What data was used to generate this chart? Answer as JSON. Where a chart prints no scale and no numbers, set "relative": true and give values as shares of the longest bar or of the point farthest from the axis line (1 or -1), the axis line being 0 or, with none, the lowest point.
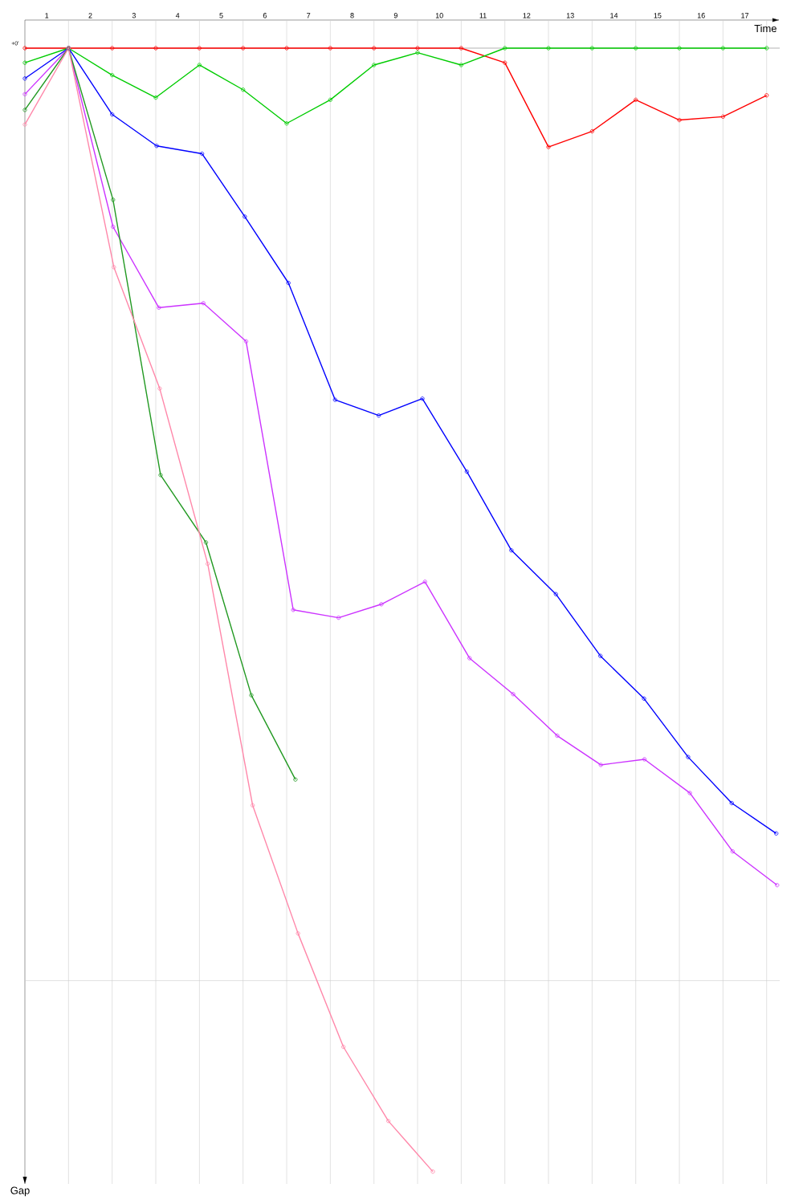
{
  "chart_data": {
    "type": "line",
    "relative": true,
    "xlabel": "Time",
    "ylabel": "Gap",
    "annotations": [
      "+0'"
    ],
    "xlim": [
      0,
      17.3
    ],
    "xticks": [
      {
        "value": 0.5,
        "label": "1"
      },
      {
        "value": 1.5,
        "label": "2"
      },
      {
        "value": 2.5,
        "label": "3"
      },
      {
        "value": 3.5,
        "label": "4"
      },
      {
        "value": 4.5,
        "label": "5"
      },
      {
        "value": 5.5,
        "label": "6"
      },
      {
        "value": 6.5,
        "label": "7"
      },
      {
        "value": 7.5,
        "label": "8"
      },
      {
        "value": 8.5,
        "label": "9"
      },
      {
        "value": 9.5,
        "label": "10"
      },
      {
        "value": 10.5,
        "label": "11"
      },
      {
        "value": 11.5,
        "label": "12"
      },
      {
        "value": 12.5,
        "label": "13"
      },
      {
        "value": 13.5,
        "label": "14"
      },
      {
        "value": 14.5,
        "label": "15"
      },
      {
        "value": 15.5,
        "label": "16"
      },
      {
        "value": 16.5,
        "label": "17"
      },
      {
        "value": 1,
        "label": null
      },
      {
        "value": 2,
        "label": null
      },
      {
        "value": 3,
        "label": null
      },
      {
        "value": 4,
        "label": null
      },
      {
        "value": 5,
        "label": null
      },
      {
        "value": 6,
        "label": null
      },
      {
        "value": 7,
        "label": null
      },
      {
        "value": 8,
        "label": null
      },
      {
        "value": 9,
        "label": null
      },
      {
        "value": 10,
        "label": null
      },
      {
        "value": 11,
        "label": null
      },
      {
        "value": 12,
        "label": null
      },
      {
        "value": 13,
        "label": null
      },
      {
        "value": 14,
        "label": null
      },
      {
        "value": 15,
        "label": null
      },
      {
        "value": 16,
        "label": null
      },
      {
        "value": 17,
        "label": null
      }
    ],
    "grid": "x",
    "marker": "circle",
    "line_style": "solid",
    "ref_lines": [
      {
        "axis": "y",
        "value": -0.83,
        "color": "#cccccc"
      }
    ],
    "series": [
      {
        "color": "#ff0000",
        "x": [
          0,
          1,
          2,
          3,
          4,
          5,
          6,
          7,
          8,
          9,
          10,
          11,
          12,
          13,
          14,
          15,
          16,
          17
        ],
        "values": [
          0,
          0,
          0,
          0,
          0,
          0,
          0,
          0,
          0,
          0,
          0,
          -0.013,
          -0.088,
          -0.074,
          -0.046,
          -0.064,
          -0.061,
          -0.042
        ]
      },
      {
        "color": "#00cc00",
        "x": [
          0,
          1,
          2,
          3,
          4,
          5,
          6,
          7,
          8,
          9,
          10,
          11,
          12,
          13,
          14,
          15,
          16,
          17
        ],
        "values": [
          -0.013,
          0,
          -0.024,
          -0.044,
          -0.015,
          -0.037,
          -0.067,
          -0.046,
          -0.015,
          -0.004,
          -0.015,
          0,
          0,
          0,
          0,
          0,
          0,
          0
        ]
      },
      {
        "color": "#0000ff",
        "x": [
          0,
          1,
          2,
          3.02,
          4.06,
          5.04,
          6.04,
          7.11,
          8.11,
          9.11,
          10.13,
          11.15,
          12.17,
          13.19,
          14.19,
          15.2,
          16.2,
          17.22
        ],
        "values": [
          -0.027,
          0,
          -0.059,
          -0.087,
          -0.094,
          -0.15,
          -0.209,
          -0.313,
          -0.327,
          -0.312,
          -0.377,
          -0.447,
          -0.486,
          -0.541,
          -0.579,
          -0.631,
          -0.672,
          -0.699
        ]
      },
      {
        "color": "#cc33ff",
        "x": [
          0,
          1,
          2.02,
          3.07,
          4.09,
          5.07,
          6.15,
          7.19,
          8.17,
          9.17,
          10.19,
          11.19,
          12.2,
          13.2,
          14.2,
          15.24,
          16.22,
          17.24
        ],
        "values": [
          -0.041,
          0,
          -0.159,
          -0.231,
          -0.227,
          -0.261,
          -0.5,
          -0.507,
          -0.495,
          -0.475,
          -0.543,
          -0.575,
          -0.612,
          -0.638,
          -0.633,
          -0.663,
          -0.715,
          -0.745
        ]
      },
      {
        "color": "#229922",
        "x": [
          0,
          1,
          2.02,
          3.11,
          4.15,
          5.19,
          6.2
        ],
        "values": [
          -0.055,
          0,
          -0.135,
          -0.38,
          -0.44,
          -0.576,
          -0.651
        ]
      },
      {
        "color": "#ff88aa",
        "x": [
          0,
          1,
          2.04,
          3.09,
          4.19,
          5.22,
          6.26,
          7.3,
          8.33,
          9.35
        ],
        "values": [
          -0.068,
          0,
          -0.195,
          -0.303,
          -0.459,
          -0.674,
          -0.788,
          -0.889,
          -0.955,
          -1
        ]
      }
    ]
  }
}
